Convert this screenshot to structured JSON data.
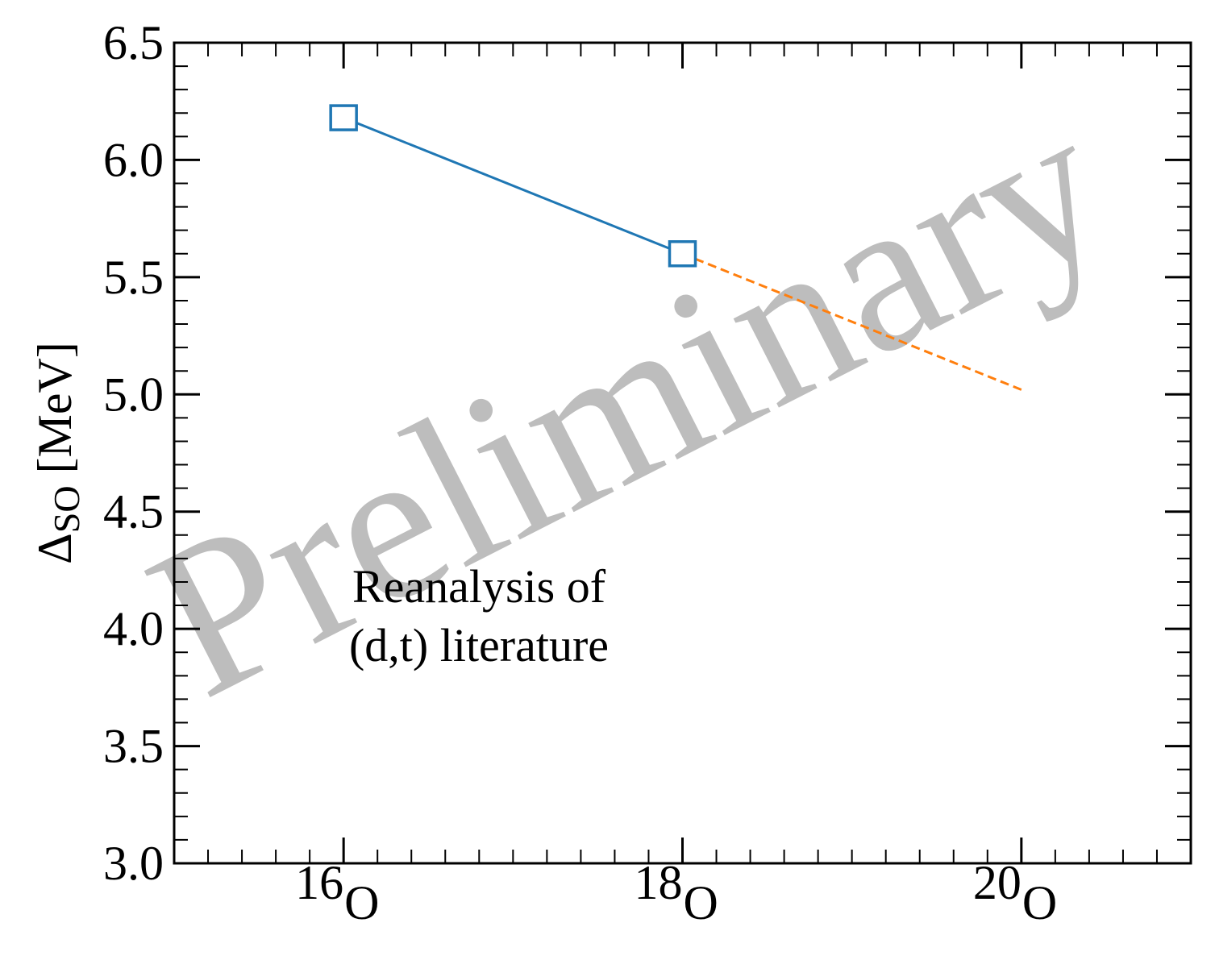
{
  "chart_data": {
    "type": "line",
    "ylabel": "Δ",
    "ylabel_sub": "SO",
    "ylabel_unit": "[MeV]",
    "ylim": [
      3.0,
      6.5
    ],
    "xlim": [
      15,
      21
    ],
    "yticks_major": [
      3.0,
      3.5,
      4.0,
      4.5,
      5.0,
      5.5,
      6.0,
      6.5
    ],
    "ytick_labels": [
      "3.0",
      "3.5",
      "4.0",
      "4.5",
      "5.0",
      "5.5",
      "6.0",
      "6.5"
    ],
    "xticks_major": [
      16,
      18,
      20
    ],
    "xtick_labels": [
      {
        "mass": "16",
        "element": "O"
      },
      {
        "mass": "18",
        "element": "O"
      },
      {
        "mass": "20",
        "element": "O"
      }
    ],
    "series": [
      {
        "x": [
          16,
          18
        ],
        "y": [
          6.18,
          5.6
        ],
        "color": "#1f77b4",
        "line": "solid",
        "marker": "open-square"
      },
      {
        "x": [
          18,
          20
        ],
        "y": [
          5.6,
          5.02
        ],
        "color": "#ff7f0e",
        "line": "dashed",
        "marker": "none"
      }
    ],
    "annotation": [
      "Reanalysis of",
      "(d,t) literature"
    ],
    "watermark": "Preliminary",
    "grid": false
  }
}
